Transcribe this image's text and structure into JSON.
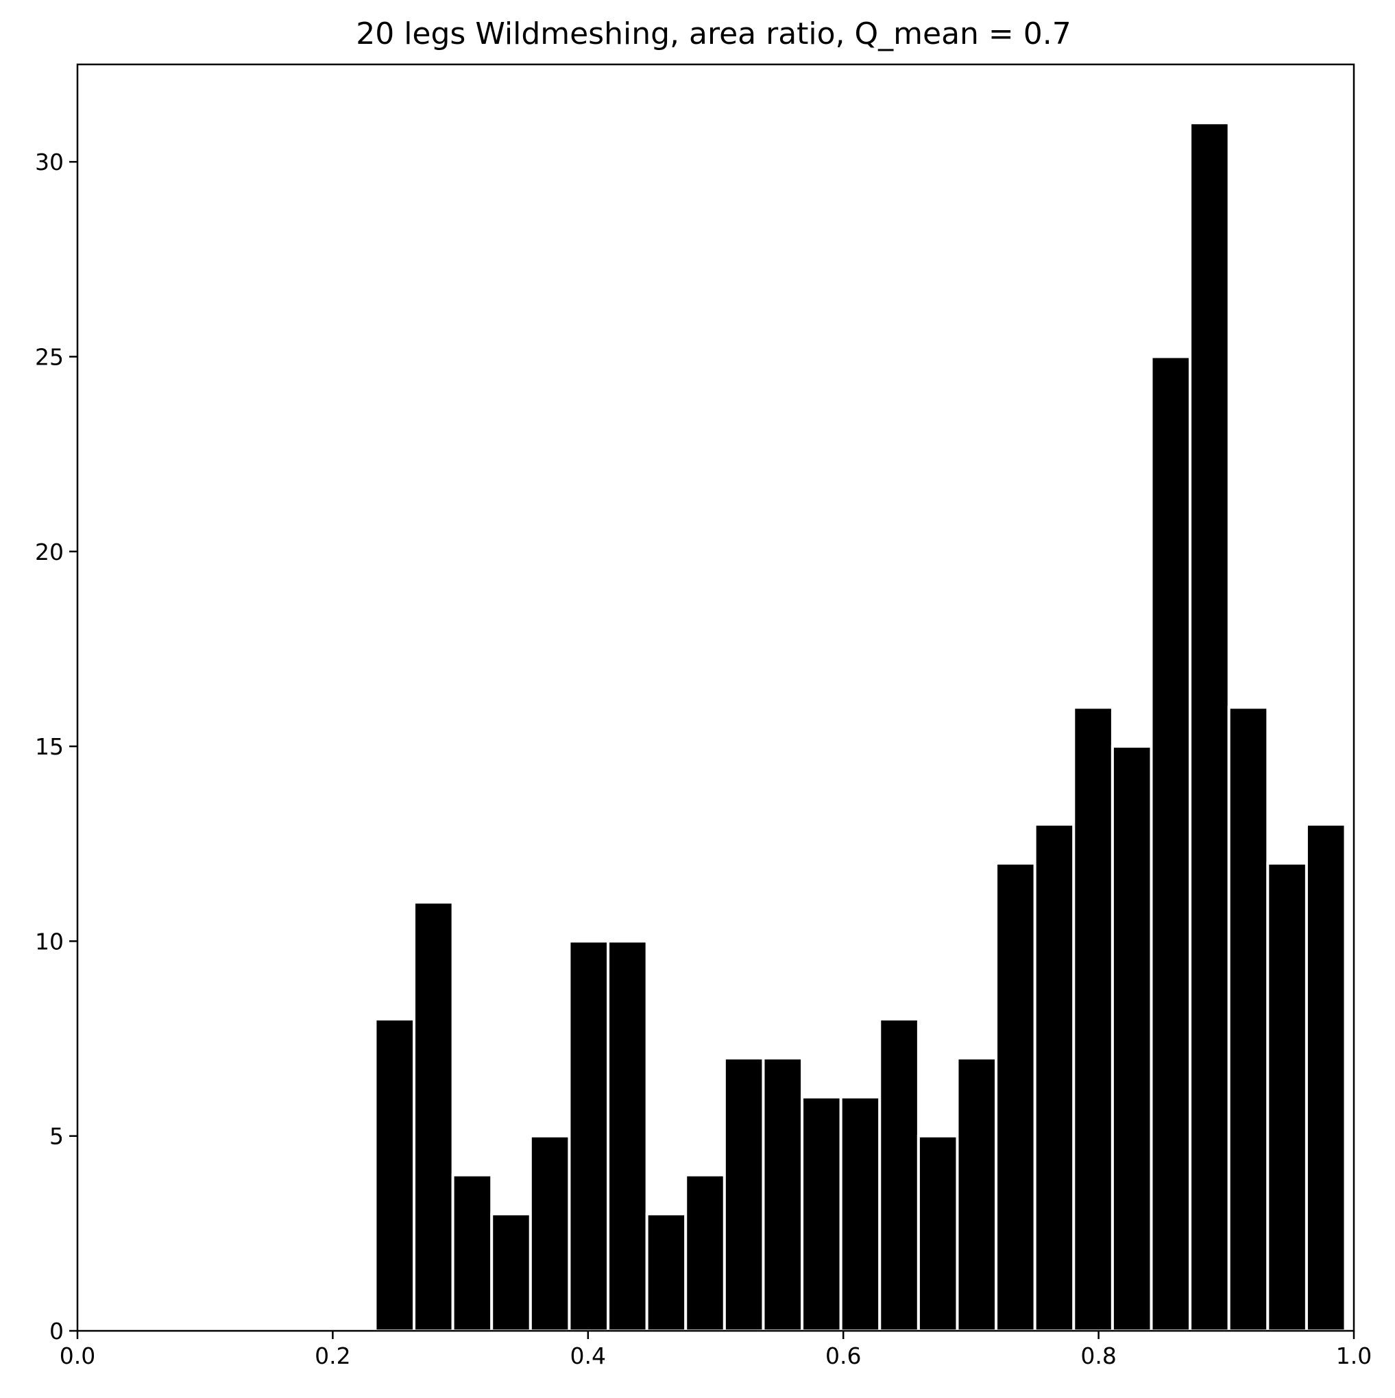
{
  "chart_data": {
    "type": "bar",
    "title": "20 legs Wildmeshing, area ratio, Q_mean = 0.7",
    "xlabel": "",
    "ylabel": "",
    "xlim": [
      0.0,
      1.0
    ],
    "ylim": [
      0,
      32.5
    ],
    "xticks": [
      "0.0",
      "0.2",
      "0.4",
      "0.6",
      "0.8",
      "1.0"
    ],
    "yticks": [
      "0",
      "5",
      "10",
      "15",
      "20",
      "25",
      "30"
    ],
    "grid": false,
    "bin_range": [
      0.2333,
      0.9933
    ],
    "values": [
      8,
      11,
      4,
      3,
      5,
      10,
      10,
      3,
      4,
      7,
      7,
      6,
      6,
      8,
      5,
      7,
      12,
      13,
      16,
      15,
      25,
      31,
      16,
      12,
      13
    ],
    "colors": {
      "bar": "#000000",
      "bar_edge": "#ffffff",
      "axis": "#000000"
    }
  }
}
